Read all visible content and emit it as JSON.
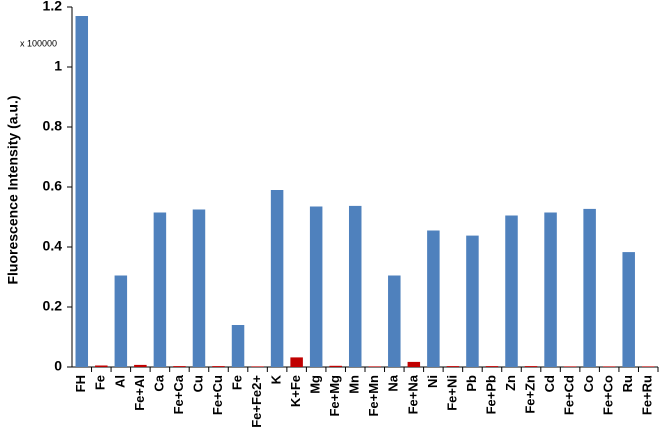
{
  "chart_data": {
    "type": "bar",
    "y_label": "Fluorescence Intensity (a.u.)",
    "annotation": "x 100000",
    "categories": [
      "FH",
      "Fe",
      "Al",
      "Fe+Al",
      "Ca",
      "Fe+Ca",
      "Cu",
      "Fe+Cu",
      "Fe",
      "Fe+Fe2+",
      "K",
      "K+Fe",
      "Mg",
      "Fe+Mg",
      "Mn",
      "Fe+Mn",
      "Na",
      "Fe+Na",
      "Ni",
      "Fe+Ni",
      "Pb",
      "Fe+Pb",
      "Zn",
      "Fe+Zn",
      "Cd",
      "Fe+Cd",
      "Co",
      "Fe+Co",
      "Ru",
      "Fe+Ru"
    ],
    "values": [
      1.17,
      0.005,
      0.305,
      0.007,
      0.515,
      0.003,
      0.525,
      0.003,
      0.14,
      0.002,
      0.59,
      0.032,
      0.535,
      0.004,
      0.537,
      0.002,
      0.305,
      0.017,
      0.455,
      0.003,
      0.438,
      0.003,
      0.505,
      0.003,
      0.515,
      0.002,
      0.527,
      0.002,
      0.383,
      0.002
    ],
    "colors": [
      "#4f81bd",
      "#c00000",
      "#4f81bd",
      "#c00000",
      "#4f81bd",
      "#c00000",
      "#4f81bd",
      "#c00000",
      "#4f81bd",
      "#c00000",
      "#4f81bd",
      "#c00000",
      "#4f81bd",
      "#c00000",
      "#4f81bd",
      "#c00000",
      "#4f81bd",
      "#c00000",
      "#4f81bd",
      "#c00000",
      "#4f81bd",
      "#c00000",
      "#4f81bd",
      "#c00000",
      "#4f81bd",
      "#c00000",
      "#4f81bd",
      "#c00000",
      "#4f81bd",
      "#c00000"
    ],
    "ylim": [
      0,
      1.2
    ],
    "yticks": [
      0,
      0.2,
      0.4,
      0.6,
      0.8,
      1,
      1.2
    ],
    "grid": false
  }
}
